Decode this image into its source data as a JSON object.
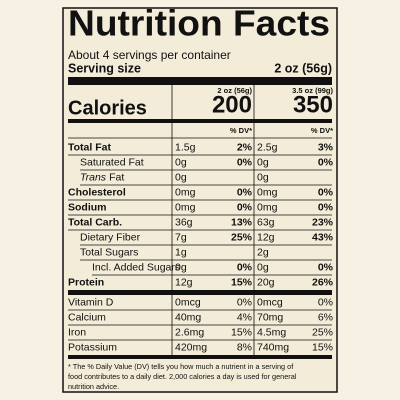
{
  "label": {
    "title": "Nutrition Facts",
    "servings_per_container": "About 4 servings per container",
    "serving_size_label": "Serving size",
    "serving_size": "2 oz (56g)",
    "columns": [
      "2 oz (56g)",
      "3.5 oz (99g)"
    ],
    "calories_label": "Calories",
    "calories": [
      "200",
      "350"
    ],
    "dv_header": "% DV*",
    "rows": [
      {
        "label": "Total Fat",
        "bold": true,
        "indent": 0,
        "amounts": [
          "1.5g",
          "2.5g"
        ],
        "dv": [
          "2%",
          "3%"
        ]
      },
      {
        "label": "Saturated Fat",
        "bold": false,
        "indent": 1,
        "amounts": [
          "0g",
          "0g"
        ],
        "dv": [
          "0%",
          "0%"
        ]
      },
      {
        "italic_prefix": "Trans",
        "label": "Fat",
        "bold": false,
        "indent": 1,
        "amounts": [
          "0g",
          "0g"
        ]
      },
      {
        "label": "Cholesterol",
        "bold": true,
        "indent": 0,
        "amounts": [
          "0mg",
          "0mg"
        ],
        "dv": [
          "0%",
          "0%"
        ]
      },
      {
        "label": "Sodium",
        "bold": true,
        "indent": 0,
        "amounts": [
          "0mg",
          "0mg"
        ],
        "dv": [
          "0%",
          "0%"
        ]
      },
      {
        "label": "Total Carb.",
        "bold": true,
        "indent": 0,
        "amounts": [
          "36g",
          "63g"
        ],
        "dv": [
          "13%",
          "23%"
        ]
      },
      {
        "label": "Dietary Fiber",
        "bold": false,
        "indent": 1,
        "amounts": [
          "7g",
          "12g"
        ],
        "dv": [
          "25%",
          "43%"
        ]
      },
      {
        "label": "Total Sugars",
        "bold": false,
        "indent": 1,
        "amounts": [
          "1g",
          "2g"
        ]
      },
      {
        "label": "Incl. Added Sugars",
        "bold": false,
        "indent": 2,
        "amounts": [
          "0g",
          "0g"
        ],
        "dv": [
          "0%",
          "0%"
        ]
      },
      {
        "label": "Protein",
        "bold": true,
        "indent": 0,
        "amounts": [
          "12g",
          "20g"
        ],
        "dv": [
          "15%",
          "26%"
        ]
      }
    ],
    "vitamins": [
      {
        "label": "Vitamin D",
        "amounts": [
          "0mcg",
          "0mcg"
        ],
        "dv": [
          "0%",
          "0%"
        ]
      },
      {
        "label": "Calcium",
        "amounts": [
          "40mg",
          "70mg"
        ],
        "dv": [
          "4%",
          "6%"
        ]
      },
      {
        "label": "Iron",
        "amounts": [
          "2.6mg",
          "4.5mg"
        ],
        "dv": [
          "15%",
          "25%"
        ]
      },
      {
        "label": "Potassium",
        "amounts": [
          "420mg",
          "740mg"
        ],
        "dv": [
          "8%",
          "15%"
        ]
      }
    ],
    "footnote": [
      "* The % Daily Value (DV) tells you how much a nutrient in a serving of",
      "food contributes to a daily diet. 2,000 calories a day is used for general",
      "nutrition advice."
    ]
  }
}
